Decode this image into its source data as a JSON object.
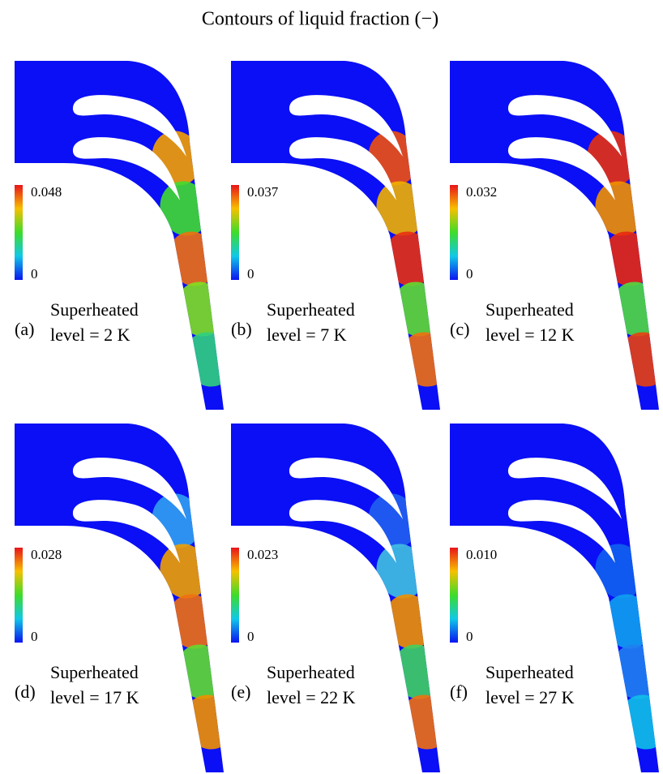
{
  "title": "Contours of liquid fraction (−)",
  "panels": [
    {
      "label": "(a)",
      "line1": "Superheated",
      "line2": "level = 2 K",
      "colorbar_max": "0.048",
      "colorbar_min": "0"
    },
    {
      "label": "(b)",
      "line1": "Superheated",
      "line2": "level = 7 K",
      "colorbar_max": "0.037",
      "colorbar_min": "0"
    },
    {
      "label": "(c)",
      "line1": "Superheated",
      "line2": "level = 12 K",
      "colorbar_max": "0.032",
      "colorbar_min": "0"
    },
    {
      "label": "(d)",
      "line1": "Superheated",
      "line2": "level = 17 K",
      "colorbar_max": "0.028",
      "colorbar_min": "0"
    },
    {
      "label": "(e)",
      "line1": "Superheated",
      "line2": "level = 22 K",
      "colorbar_max": "0.023",
      "colorbar_min": "0"
    },
    {
      "label": "(f)",
      "line1": "Superheated",
      "line2": "level = 27 K",
      "colorbar_max": "0.010",
      "colorbar_min": "0"
    }
  ]
}
